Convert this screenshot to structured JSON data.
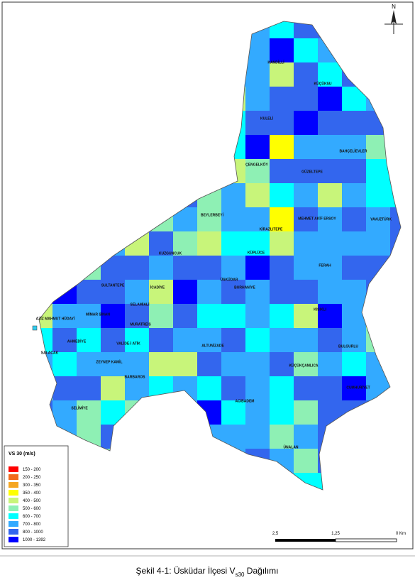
{
  "north": "N",
  "districts": [
    "KANDİLLİ",
    "KÜÇÜKSU",
    "KULELİ",
    "BAHÇELİEVLER",
    "ÇENGELKÖY",
    "GÜZELTEPE",
    "BEYLERBEYİ",
    "MEHMET AKİF ERSOY",
    "YAVUZTÜRK",
    "KİRAZLITEPE",
    "KUZGUNCUK",
    "KÜPLÜCE",
    "FERAH",
    "ÜSKÜDAR",
    "BURHANİYE",
    "SULTANTEPE",
    "İCADİYE",
    "SELAMİALİ",
    "KISIKLI",
    "MİMAR SİNAN",
    "AZİZ MAHMUT HÜDAYİ",
    "MURATREİS",
    "AHMEDİYE",
    "VALİDE-İ ATİK",
    "ALTUNİZADE",
    "BULGURLU",
    "SALACAK",
    "ZEYNEP KAMİL",
    "KÜÇÜKÇAMLICA",
    "BARBAROS",
    "CUMHURİYET",
    "SELİMİYE",
    "ACIBADEM",
    "ÜNALAN"
  ],
  "legend": {
    "title": "VS 30 (m/s)",
    "items": [
      {
        "label": "150 - 200",
        "color": "#ff0000"
      },
      {
        "label": "200 - 250",
        "color": "#f26b1d"
      },
      {
        "label": "300 - 350",
        "color": "#f5a623"
      },
      {
        "label": "350 - 400",
        "color": "#ffff00"
      },
      {
        "label": "400 - 500",
        "color": "#c8f57a"
      },
      {
        "label": "500 - 600",
        "color": "#8ef0b4"
      },
      {
        "label": "600 - 700",
        "color": "#00ffff"
      },
      {
        "label": "700 - 800",
        "color": "#33aaff"
      },
      {
        "label": "800 - 1000",
        "color": "#3366ee"
      },
      {
        "label": "1000 - 1392",
        "color": "#0000ff"
      }
    ]
  },
  "scale": [
    "2,5",
    "1,25",
    "0 Km"
  ],
  "caption": {
    "prefix": "Şekil 4-1: Üsküdar İlçesi V",
    "subscript": "s30",
    "suffix": " Dağılımı"
  }
}
